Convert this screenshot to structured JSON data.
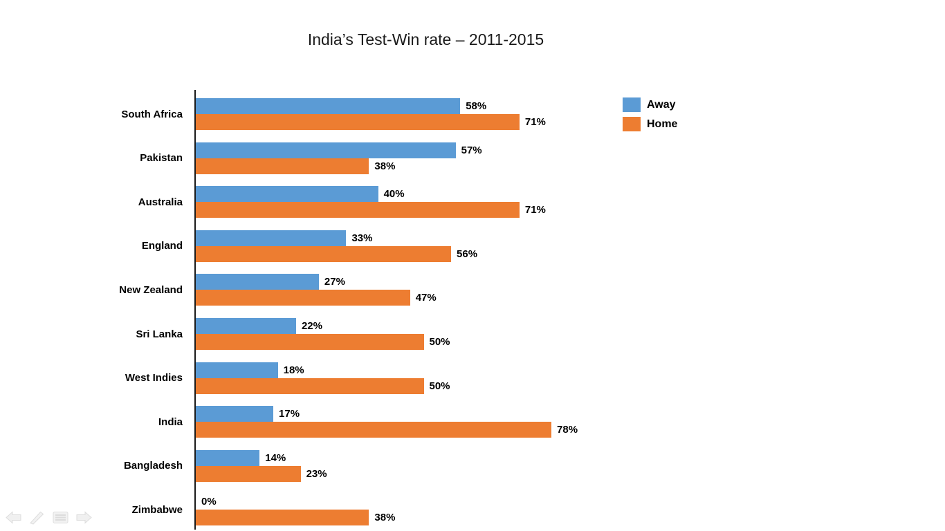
{
  "title": "India’s Test-Win rate – 2011-2015",
  "colors": {
    "away": "#5B9BD5",
    "home": "#ED7D31",
    "text": "#000000",
    "axis": "#1a1a1a",
    "background": "#ffffff"
  },
  "legend": [
    {
      "label": "Away",
      "color": "#5B9BD5"
    },
    {
      "label": "Home",
      "color": "#ED7D31"
    }
  ],
  "slideshow_controls": [
    {
      "name": "previous-slide"
    },
    {
      "name": "pen-tool"
    },
    {
      "name": "slide-menu"
    },
    {
      "name": "next-slide"
    }
  ],
  "chart_data": {
    "type": "bar",
    "orientation": "horizontal",
    "title": "India’s Test-Win rate – 2011-2015",
    "categories": [
      "South Africa",
      "Pakistan",
      "Australia",
      "England",
      "New Zealand",
      "Sri Lanka",
      "West Indies",
      "India",
      "Bangladesh",
      "Zimbabwe"
    ],
    "series": [
      {
        "name": "Away",
        "color": "#5B9BD5",
        "values": [
          58,
          57,
          40,
          33,
          27,
          22,
          18,
          17,
          14,
          0
        ]
      },
      {
        "name": "Home",
        "color": "#ED7D31",
        "values": [
          71,
          38,
          71,
          56,
          47,
          50,
          50,
          78,
          23,
          38
        ]
      }
    ],
    "value_suffix": "%",
    "xlim": [
      0,
      100
    ],
    "data_labels": true,
    "gridlines": false,
    "legend_position": "top-right"
  }
}
